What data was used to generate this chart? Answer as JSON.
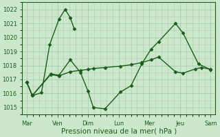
{
  "bg_color": "#cce8cc",
  "grid_color": "#aaccaa",
  "line_color": "#1a5c1a",
  "marker": "D",
  "markersize": 2.5,
  "linewidth": 1.0,
  "xlabel": "Pression niveau de la mer( hPa )",
  "xlabel_fontsize": 7.5,
  "ylabel": "",
  "ylim": [
    1014.5,
    1022.5
  ],
  "yticks": [
    1015,
    1016,
    1017,
    1018,
    1019,
    1020,
    1021,
    1022
  ],
  "tick_fontsize": 6.0,
  "xtick_labels": [
    "Mar",
    "Ven",
    "Dim",
    "Lun",
    "Mer",
    "Jeu",
    "Sam"
  ],
  "xtick_positions": [
    0,
    1,
    2,
    3,
    4,
    5,
    6
  ],
  "line1_x": [
    0,
    0.18,
    0.48,
    0.75,
    1.05,
    1.25,
    1.42,
    1.55
  ],
  "line1_y": [
    1016.8,
    1015.85,
    1016.05,
    1019.5,
    1021.3,
    1022.0,
    1021.4,
    1020.6
  ],
  "line2_x": [
    0,
    0.18,
    0.78,
    1.05,
    1.42,
    1.75,
    2.0,
    2.17,
    2.55,
    3.05,
    3.4,
    3.75,
    4.05,
    4.3,
    4.85,
    5.1,
    5.6,
    6.0
  ],
  "line2_y": [
    1016.8,
    1015.85,
    1017.4,
    1017.3,
    1018.4,
    1017.5,
    1016.15,
    1015.0,
    1014.9,
    1016.1,
    1016.55,
    1018.1,
    1019.15,
    1019.7,
    1021.0,
    1020.3,
    1018.1,
    1017.7
  ],
  "line3_x": [
    0,
    0.18,
    0.78,
    1.05,
    1.42,
    1.75,
    2.0,
    2.17,
    2.55,
    3.05,
    3.4,
    3.75,
    4.05,
    4.3,
    4.85,
    5.1,
    5.5,
    5.7,
    6.0
  ],
  "line3_y": [
    1016.8,
    1015.85,
    1017.35,
    1017.25,
    1017.55,
    1017.65,
    1017.72,
    1017.78,
    1017.85,
    1017.95,
    1018.05,
    1018.2,
    1018.4,
    1018.6,
    1017.55,
    1017.45,
    1017.75,
    1017.85,
    1017.72
  ]
}
